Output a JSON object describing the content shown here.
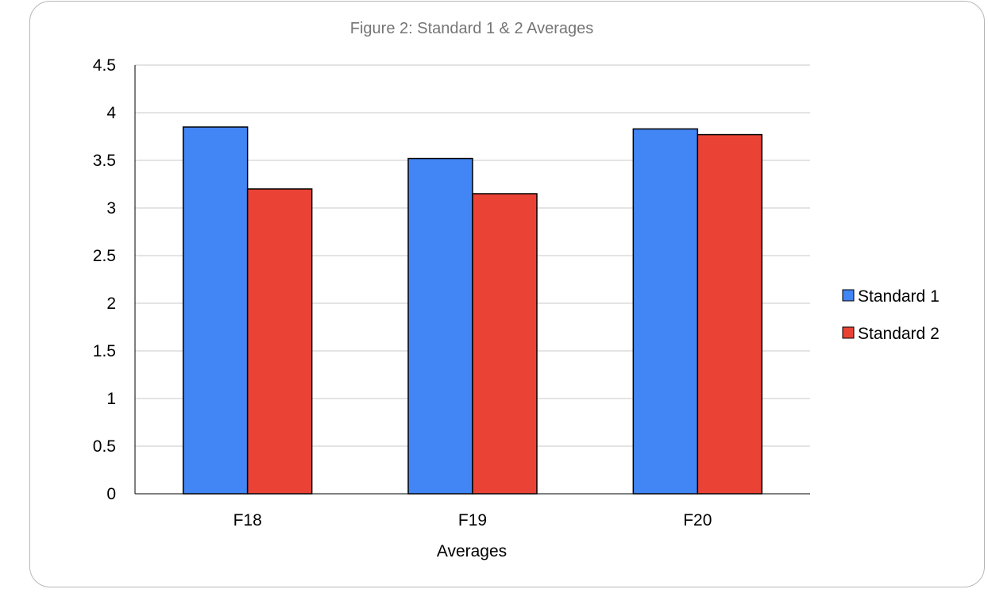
{
  "chart_data": {
    "type": "bar",
    "title": "Figure 2: Standard 1 & 2 Averages",
    "xlabel": "Averages",
    "ylabel": "",
    "categories": [
      "F18",
      "F19",
      "F20"
    ],
    "series": [
      {
        "name": "Standard 1",
        "values": [
          3.85,
          3.52,
          3.83
        ],
        "color": "#4285f4"
      },
      {
        "name": "Standard 2",
        "values": [
          3.2,
          3.15,
          3.77
        ],
        "color": "#ea4335"
      }
    ],
    "ylim": [
      0,
      4.5
    ],
    "yticks": [
      "0",
      "0.5",
      "1",
      "1.5",
      "2",
      "2.5",
      "3",
      "3.5",
      "4",
      "4.5"
    ],
    "grid": true,
    "legend_position": "right"
  }
}
